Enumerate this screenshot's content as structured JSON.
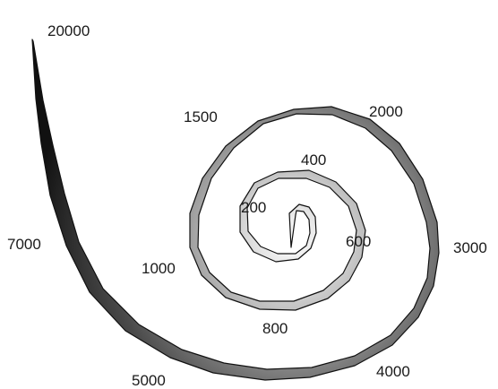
{
  "spiral": {
    "labels": [
      "200",
      "400",
      "600",
      "800",
      "1000",
      "1500",
      "2000",
      "3000",
      "4000",
      "5000",
      "7000",
      "20000"
    ],
    "band_color_center": "#ffffff",
    "band_color_edge": "#1a1a1a"
  }
}
